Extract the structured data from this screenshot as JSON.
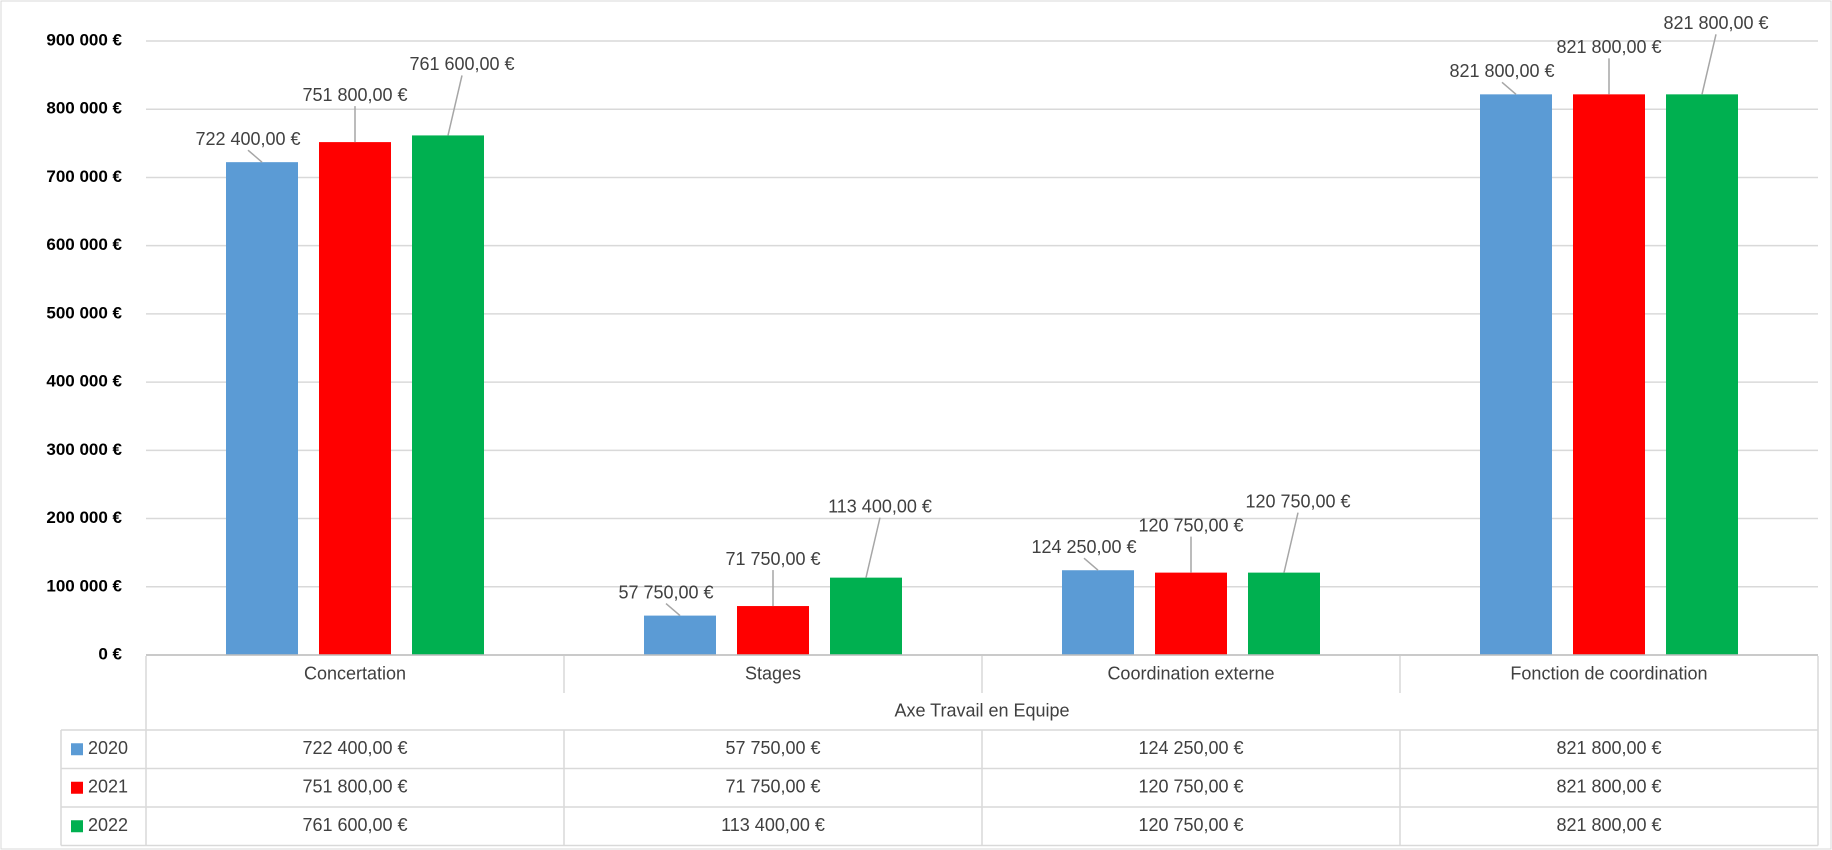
{
  "chart_data": {
    "type": "bar",
    "categories": [
      "Concertation",
      "Stages",
      "Coordination externe",
      "Fonction de coordination"
    ],
    "category_group": "Axe Travail en Equipe",
    "series": [
      {
        "name": "2020",
        "color": "#5b9bd5",
        "values": [
          722400,
          57750,
          124250,
          821800
        ],
        "value_labels": [
          "722 400,00 €",
          "57 750,00 €",
          "124 250,00 €",
          "821 800,00 €"
        ]
      },
      {
        "name": "2021",
        "color": "#ff0000",
        "values": [
          751800,
          71750,
          120750,
          821800
        ],
        "value_labels": [
          "751 800,00 €",
          "71 750,00 €",
          "120 750,00 €",
          "821 800,00 €"
        ]
      },
      {
        "name": "2022",
        "color": "#00b050",
        "values": [
          761600,
          113400,
          120750,
          821800
        ],
        "value_labels": [
          "761 600,00 €",
          "113 400,00 €",
          "120 750,00 €",
          "821 800,00 €"
        ]
      }
    ],
    "ylim": [
      0,
      900000
    ],
    "yticks": [
      {
        "value": 0,
        "label": "0 €"
      },
      {
        "value": 100000,
        "label": "100 000 €"
      },
      {
        "value": 200000,
        "label": "200 000 €"
      },
      {
        "value": 300000,
        "label": "300 000 €"
      },
      {
        "value": 400000,
        "label": "400 000 €"
      },
      {
        "value": 500000,
        "label": "500 000 €"
      },
      {
        "value": 600000,
        "label": "600 000 €"
      },
      {
        "value": 700000,
        "label": "700 000 €"
      },
      {
        "value": 800000,
        "label": "800 000 €"
      },
      {
        "value": 900000,
        "label": "900 000 €"
      }
    ],
    "grid": true,
    "data_table": true
  }
}
